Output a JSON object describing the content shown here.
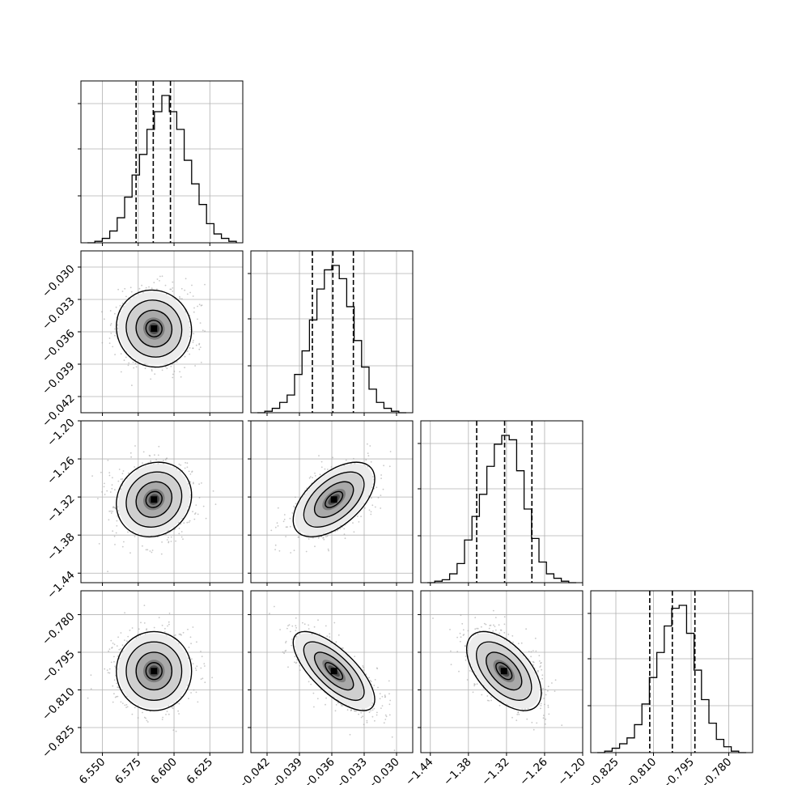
{
  "chart_data": {
    "type": "corner",
    "grid": true,
    "parameters": [
      {
        "range": [
          6.535,
          6.648
        ],
        "ticks": [
          "6.550",
          "6.575",
          "6.600",
          "6.625"
        ],
        "tick_values": [
          6.55,
          6.575,
          6.6,
          6.625
        ],
        "quantiles": [
          6.5735,
          6.5855,
          6.5975
        ],
        "hist_bins": [
          0,
          0.01,
          0.03,
          0.08,
          0.17,
          0.31,
          0.46,
          0.6,
          0.77,
          0.89,
          1.0,
          0.89,
          0.77,
          0.56,
          0.4,
          0.26,
          0.13,
          0.06,
          0.03,
          0.01
        ]
      },
      {
        "range": [
          -0.0435,
          -0.0285
        ],
        "ticks": [
          "−0.042",
          "−0.039",
          "−0.036",
          "−0.033",
          "−0.030"
        ],
        "tick_values": [
          -0.042,
          -0.039,
          -0.036,
          -0.033,
          -0.03
        ],
        "quantiles": [
          -0.0378,
          -0.0359,
          -0.034
        ],
        "hist_bins": [
          0,
          0.01,
          0.03,
          0.07,
          0.12,
          0.26,
          0.42,
          0.63,
          0.84,
          0.97,
          1.0,
          0.91,
          0.72,
          0.49,
          0.31,
          0.16,
          0.07,
          0.03,
          0.01,
          0
        ]
      },
      {
        "range": [
          -1.455,
          -1.2
        ],
        "ticks": [
          "−1.44",
          "−1.38",
          "−1.32",
          "−1.26",
          "−1.20"
        ],
        "tick_values": [
          -1.44,
          -1.38,
          -1.32,
          -1.26,
          -1.2
        ],
        "quantiles": [
          -1.367,
          -1.323,
          -1.28
        ],
        "hist_bins": [
          0,
          0.01,
          0.02,
          0.06,
          0.13,
          0.29,
          0.45,
          0.6,
          0.79,
          0.94,
          1.0,
          0.97,
          0.76,
          0.5,
          0.3,
          0.14,
          0.06,
          0.03,
          0.01,
          0
        ]
      },
      {
        "range": [
          -0.835,
          -0.7705
        ],
        "ticks": [
          "−0.825",
          "−0.810",
          "−0.795",
          "−0.780"
        ],
        "tick_values": [
          -0.825,
          -0.81,
          -0.795,
          -0.78
        ],
        "quantiles": [
          -0.8115,
          -0.8025,
          -0.7935
        ],
        "hist_bins": [
          0,
          0.01,
          0.03,
          0.06,
          0.1,
          0.19,
          0.33,
          0.51,
          0.68,
          0.86,
          0.98,
          1.0,
          0.81,
          0.56,
          0.36,
          0.2,
          0.09,
          0.04,
          0.01,
          0
        ]
      }
    ],
    "pairs": [
      {
        "x": 0,
        "y": 1,
        "center": [
          6.586,
          -0.0357
        ],
        "sd": [
          0.0125,
          0.0017
        ],
        "rho": -0.05
      },
      {
        "x": 0,
        "y": 2,
        "center": [
          6.586,
          -1.324
        ],
        "sd": [
          0.0125,
          0.028
        ],
        "rho": 0.12
      },
      {
        "x": 1,
        "y": 2,
        "center": [
          -0.0358,
          -1.324
        ],
        "sd": [
          0.0018,
          0.028
        ],
        "rho": 0.55
      },
      {
        "x": 0,
        "y": 3,
        "center": [
          6.586,
          -0.8025
        ],
        "sd": [
          0.0125,
          0.0075
        ],
        "rho": 0.0
      },
      {
        "x": 1,
        "y": 3,
        "center": [
          -0.0358,
          -0.8025
        ],
        "sd": [
          0.0018,
          0.0075
        ],
        "rho": -0.72
      },
      {
        "x": 2,
        "y": 3,
        "center": [
          -1.324,
          -0.8025
        ],
        "sd": [
          0.028,
          0.0075
        ],
        "rho": -0.55
      }
    ]
  }
}
